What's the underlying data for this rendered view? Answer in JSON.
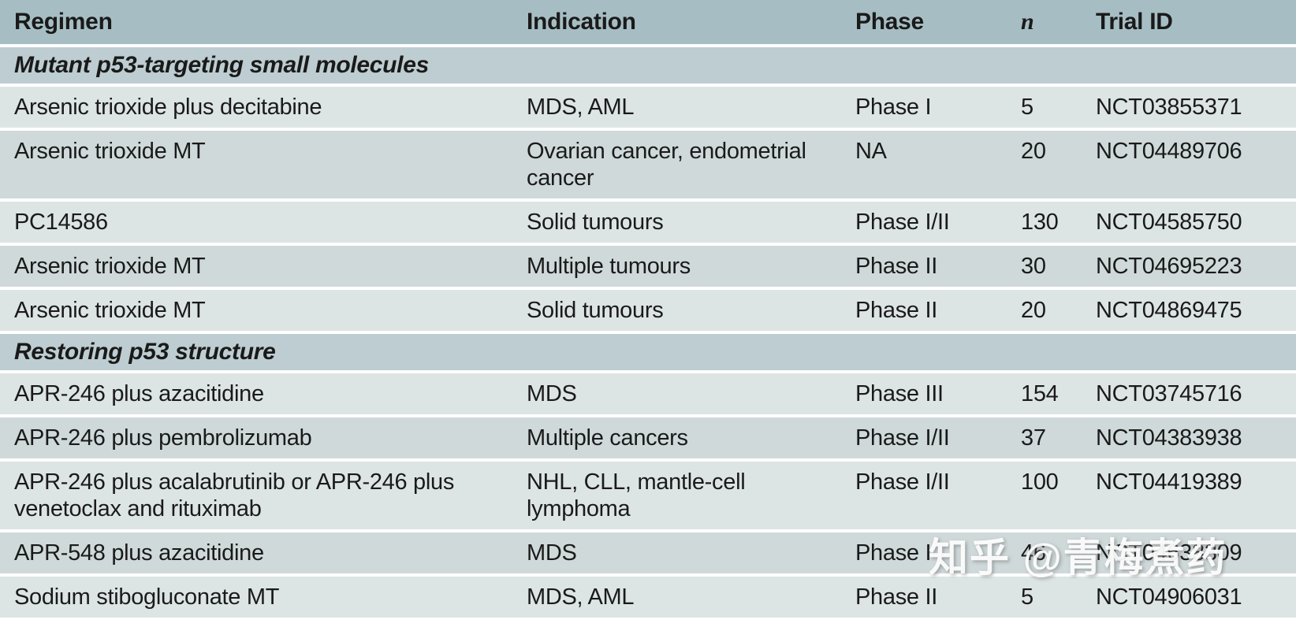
{
  "colors": {
    "header_bg": "#a6bec3",
    "section_bg": "#bdcdd1",
    "row_light_bg": "#dde4e4",
    "row_dark_bg": "#cfd9da",
    "text": "#1a1a1a",
    "watermark_text": "#ffffff"
  },
  "table": {
    "columns": [
      "Regimen",
      "Indication",
      "Phase",
      "n",
      "Trial ID"
    ],
    "rows": [
      {
        "type": "section",
        "label": "Mutant p53-targeting small molecules"
      },
      {
        "type": "data",
        "regimen": "Arsenic trioxide plus decitabine",
        "indication": "MDS, AML",
        "phase": "Phase I",
        "n": "5",
        "trial_id": "NCT03855371"
      },
      {
        "type": "data",
        "regimen": "Arsenic trioxide MT",
        "indication": "Ovarian cancer, endometrial cancer",
        "phase": "NA",
        "n": "20",
        "trial_id": "NCT04489706"
      },
      {
        "type": "data",
        "regimen": "PC14586",
        "indication": "Solid tumours",
        "phase": "Phase I/II",
        "n": "130",
        "trial_id": "NCT04585750"
      },
      {
        "type": "data",
        "regimen": "Arsenic trioxide MT",
        "indication": "Multiple tumours",
        "phase": "Phase II",
        "n": "30",
        "trial_id": "NCT04695223"
      },
      {
        "type": "data",
        "regimen": "Arsenic trioxide MT",
        "indication": "Solid tumours",
        "phase": "Phase II",
        "n": "20",
        "trial_id": "NCT04869475"
      },
      {
        "type": "section",
        "label": "Restoring p53 structure"
      },
      {
        "type": "data",
        "regimen": "APR-246 plus azacitidine",
        "indication": "MDS",
        "phase": "Phase III",
        "n": "154",
        "trial_id": "NCT03745716"
      },
      {
        "type": "data",
        "regimen": "APR-246 plus pembrolizumab",
        "indication": "Multiple cancers",
        "phase": "Phase I/II",
        "n": "37",
        "trial_id": "NCT04383938"
      },
      {
        "type": "data",
        "regimen": "APR-246 plus acalabrutinib or APR-246 plus venetoclax and rituximab",
        "indication": "NHL, CLL, mantle-cell lymphoma",
        "phase": "Phase I/II",
        "n": "100",
        "trial_id": "NCT04419389"
      },
      {
        "type": "data",
        "regimen": "APR-548 plus azacitidine",
        "indication": "MDS",
        "phase": "Phase I",
        "n": "46",
        "trial_id": "NCT04638309"
      },
      {
        "type": "data",
        "regimen": "Sodium stibogluconate MT",
        "indication": "MDS, AML",
        "phase": "Phase II",
        "n": "5",
        "trial_id": "NCT04906031"
      }
    ]
  },
  "watermark": {
    "text": "知乎 @青梅煮药"
  }
}
